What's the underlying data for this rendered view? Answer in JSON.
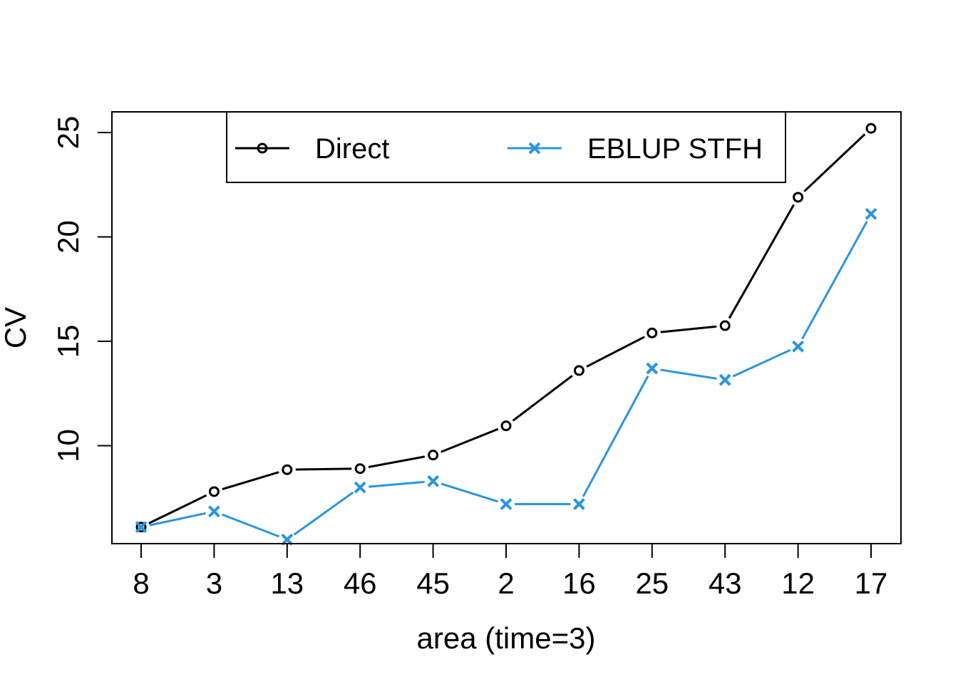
{
  "chart_data": {
    "type": "line",
    "xlabel": "area (time=3)",
    "ylabel": "CV",
    "categories": [
      "8",
      "3",
      "13",
      "46",
      "45",
      "2",
      "16",
      "25",
      "43",
      "12",
      "17"
    ],
    "series": [
      {
        "name": "Direct",
        "marker": "circle",
        "color": "#000000",
        "values": [
          6.1,
          7.8,
          8.85,
          8.9,
          9.55,
          10.95,
          13.6,
          15.4,
          15.75,
          21.9,
          25.2
        ]
      },
      {
        "name": "EBLUP STFH",
        "marker": "cross",
        "color": "#2B95DF",
        "values": [
          6.1,
          6.85,
          5.5,
          8.0,
          8.3,
          7.2,
          7.2,
          13.7,
          13.15,
          14.75,
          21.1
        ]
      }
    ],
    "ylim": [
      5.5,
      25.2
    ],
    "yticks": [
      10,
      15,
      20,
      25
    ],
    "legend": "top"
  }
}
